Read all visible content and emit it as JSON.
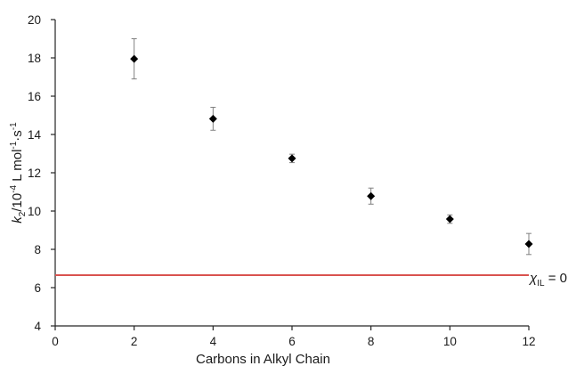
{
  "chart_data": {
    "type": "scatter",
    "title": "",
    "xlabel": "Carbons in Alkyl Chain",
    "ylabel": {
      "var": "k",
      "var_sub": "2",
      "prefix": "/10",
      "prefix_sup": "-4",
      "unit_main": " L mol",
      "unit_mol_sup": "-1",
      "unit_s": "s",
      "unit_s_sup": "-1"
    },
    "xlim": [
      0,
      12
    ],
    "ylim": [
      4,
      20
    ],
    "x_ticks": [
      0,
      2,
      4,
      6,
      8,
      10,
      12
    ],
    "y_ticks": [
      4,
      6,
      8,
      10,
      12,
      14,
      16,
      18,
      20
    ],
    "grid": false,
    "marker": "diamond",
    "marker_color": "#000000",
    "errorbar_color": "#808080",
    "series": [
      {
        "x": [
          2,
          4,
          6,
          8,
          10,
          12
        ],
        "y": [
          17.95,
          14.82,
          12.75,
          10.78,
          9.58,
          8.28
        ],
        "y_err": [
          1.05,
          0.6,
          0.22,
          0.42,
          0.22,
          0.55
        ]
      }
    ],
    "reference_line": {
      "y": 6.65,
      "color": "#d9534f",
      "label_symbol": "χ",
      "label_sub": "IL",
      "label_rest": " = 0"
    }
  }
}
